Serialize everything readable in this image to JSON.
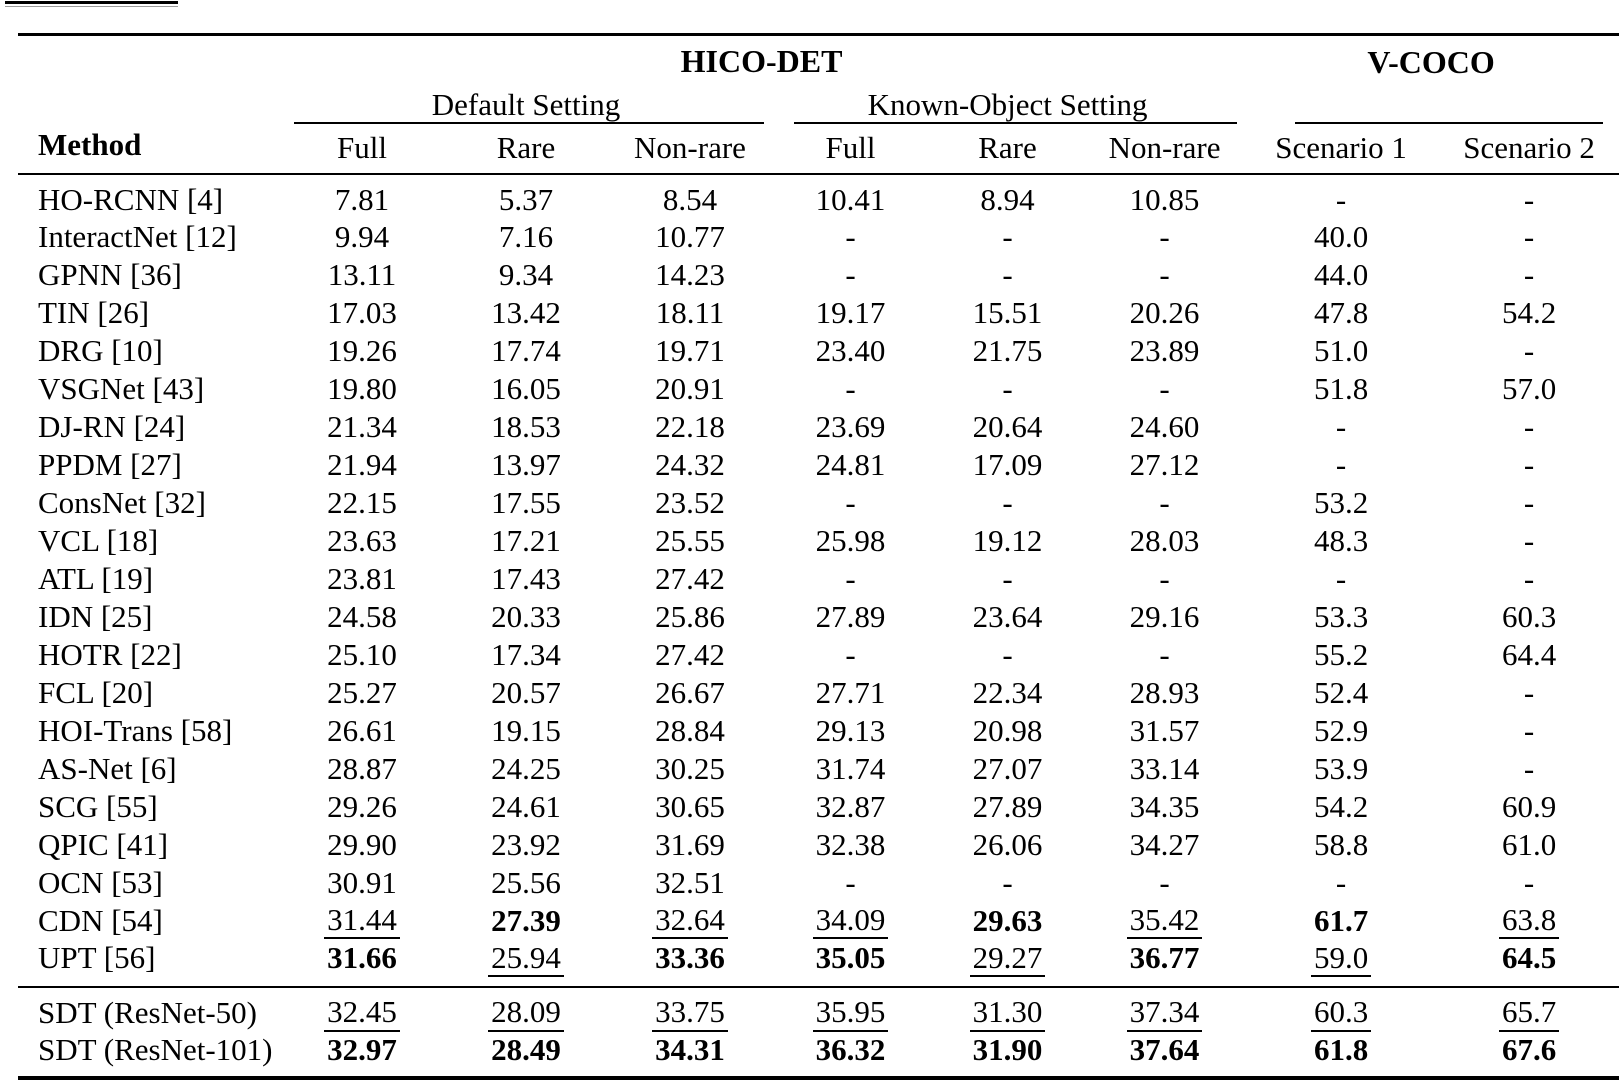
{
  "colors": {
    "background": "#ffffff",
    "text": "#000000",
    "rule": "#000000"
  },
  "table": {
    "group_header": {
      "hico_det": "HICO-DET",
      "v_coco": "V-COCO"
    },
    "subgroup_header": {
      "default_setting": "Default Setting",
      "known_object_setting": "Known-Object Setting"
    },
    "column_header": {
      "method": "Method",
      "cols": [
        "Full",
        "Rare",
        "Non-rare",
        "Full",
        "Rare",
        "Non-rare",
        "Scenario 1",
        "Scenario 2"
      ]
    },
    "rows": [
      {
        "method": "HO-RCNN [4]",
        "cells": [
          "7.81",
          "5.37",
          "8.54",
          "10.41",
          "8.94",
          "10.85",
          "-",
          "-"
        ]
      },
      {
        "method": "InteractNet [12]",
        "cells": [
          "9.94",
          "7.16",
          "10.77",
          "-",
          "-",
          "-",
          "40.0",
          "-"
        ]
      },
      {
        "method": "GPNN [36]",
        "cells": [
          "13.11",
          "9.34",
          "14.23",
          "-",
          "-",
          "-",
          "44.0",
          "-"
        ]
      },
      {
        "method": "TIN [26]",
        "cells": [
          "17.03",
          "13.42",
          "18.11",
          "19.17",
          "15.51",
          "20.26",
          "47.8",
          "54.2"
        ]
      },
      {
        "method": "DRG [10]",
        "cells": [
          "19.26",
          "17.74",
          "19.71",
          "23.40",
          "21.75",
          "23.89",
          "51.0",
          "-"
        ]
      },
      {
        "method": "VSGNet [43]",
        "cells": [
          "19.80",
          "16.05",
          "20.91",
          "-",
          "-",
          "-",
          "51.8",
          "57.0"
        ]
      },
      {
        "method": "DJ-RN [24]",
        "cells": [
          "21.34",
          "18.53",
          "22.18",
          "23.69",
          "20.64",
          "24.60",
          "-",
          "-"
        ]
      },
      {
        "method": "PPDM [27]",
        "cells": [
          "21.94",
          "13.97",
          "24.32",
          "24.81",
          "17.09",
          "27.12",
          "-",
          "-"
        ]
      },
      {
        "method": "ConsNet [32]",
        "cells": [
          "22.15",
          "17.55",
          "23.52",
          "-",
          "-",
          "-",
          "53.2",
          "-"
        ]
      },
      {
        "method": "VCL [18]",
        "cells": [
          "23.63",
          "17.21",
          "25.55",
          "25.98",
          "19.12",
          "28.03",
          "48.3",
          "-"
        ]
      },
      {
        "method": "ATL [19]",
        "cells": [
          "23.81",
          "17.43",
          "27.42",
          "-",
          "-",
          "-",
          "-",
          "-"
        ]
      },
      {
        "method": "IDN [25]",
        "cells": [
          "24.58",
          "20.33",
          "25.86",
          "27.89",
          "23.64",
          "29.16",
          "53.3",
          "60.3"
        ]
      },
      {
        "method": "HOTR [22]",
        "cells": [
          "25.10",
          "17.34",
          "27.42",
          "-",
          "-",
          "-",
          "55.2",
          "64.4"
        ]
      },
      {
        "method": "FCL [20]",
        "cells": [
          "25.27",
          "20.57",
          "26.67",
          "27.71",
          "22.34",
          "28.93",
          "52.4",
          "-"
        ]
      },
      {
        "method": "HOI-Trans [58]",
        "cells": [
          "26.61",
          "19.15",
          "28.84",
          "29.13",
          "20.98",
          "31.57",
          "52.9",
          "-"
        ]
      },
      {
        "method": "AS-Net [6]",
        "cells": [
          "28.87",
          "24.25",
          "30.25",
          "31.74",
          "27.07",
          "33.14",
          "53.9",
          "-"
        ]
      },
      {
        "method": "SCG [55]",
        "cells": [
          "29.26",
          "24.61",
          "30.65",
          "32.87",
          "27.89",
          "34.35",
          "54.2",
          "60.9"
        ]
      },
      {
        "method": "QPIC [41]",
        "cells": [
          "29.90",
          "23.92",
          "31.69",
          "32.38",
          "26.06",
          "34.27",
          "58.8",
          "61.0"
        ]
      },
      {
        "method": "OCN [53]",
        "cells": [
          "30.91",
          "25.56",
          "32.51",
          "-",
          "-",
          "-",
          "-",
          "-"
        ]
      },
      {
        "method": "CDN [54]",
        "cells": [
          {
            "v": "31.44",
            "s": "u"
          },
          {
            "v": "27.39",
            "s": "b"
          },
          {
            "v": "32.64",
            "s": "u"
          },
          {
            "v": "34.09",
            "s": "u"
          },
          {
            "v": "29.63",
            "s": "b"
          },
          {
            "v": "35.42",
            "s": "u"
          },
          {
            "v": "61.7",
            "s": "b"
          },
          {
            "v": "63.8",
            "s": "u"
          }
        ]
      },
      {
        "method": "UPT [56]",
        "cells": [
          {
            "v": "31.66",
            "s": "b"
          },
          {
            "v": "25.94",
            "s": "u"
          },
          {
            "v": "33.36",
            "s": "b"
          },
          {
            "v": "35.05",
            "s": "b"
          },
          {
            "v": "29.27",
            "s": "u"
          },
          {
            "v": "36.77",
            "s": "b"
          },
          {
            "v": "59.0",
            "s": "u"
          },
          {
            "v": "64.5",
            "s": "b"
          }
        ]
      }
    ],
    "footer_rows": [
      {
        "method": "SDT (ResNet-50)",
        "cells": [
          {
            "v": "32.45",
            "s": "u"
          },
          {
            "v": "28.09",
            "s": "u"
          },
          {
            "v": "33.75",
            "s": "u"
          },
          {
            "v": "35.95",
            "s": "u"
          },
          {
            "v": "31.30",
            "s": "u"
          },
          {
            "v": "37.34",
            "s": "u"
          },
          {
            "v": "60.3",
            "s": "u"
          },
          {
            "v": "65.7",
            "s": "u"
          }
        ]
      },
      {
        "method": "SDT (ResNet-101)",
        "cells": [
          {
            "v": "32.97",
            "s": "b"
          },
          {
            "v": "28.49",
            "s": "b"
          },
          {
            "v": "34.31",
            "s": "b"
          },
          {
            "v": "36.32",
            "s": "b"
          },
          {
            "v": "31.90",
            "s": "b"
          },
          {
            "v": "37.64",
            "s": "b"
          },
          {
            "v": "61.8",
            "s": "b"
          },
          {
            "v": "67.6",
            "s": "b"
          }
        ]
      }
    ]
  }
}
